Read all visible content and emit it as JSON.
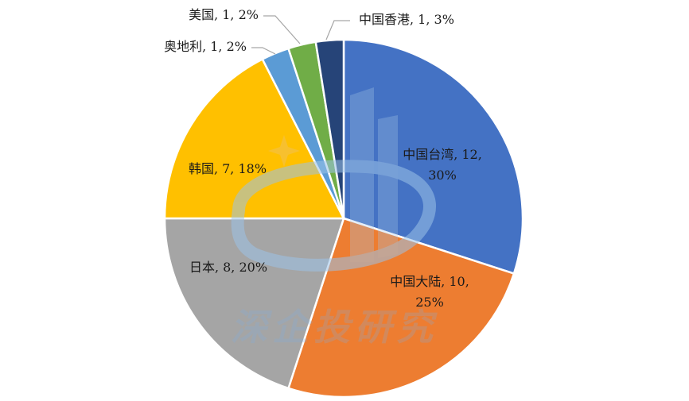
{
  "chart_data": {
    "type": "pie",
    "title": "",
    "start_angle_deg": 0,
    "direction": "clockwise",
    "slices": [
      {
        "label": "中国台湾",
        "value": 12,
        "percent": "30%",
        "color": "#4472c4",
        "label_lines": [
          "中国台湾, 12,",
          "30%"
        ],
        "label_pos": "inside"
      },
      {
        "label": "中国大陆",
        "value": 10,
        "percent": "25%",
        "color": "#ed7d31",
        "label_lines": [
          "中国大陆, 10,",
          "25%"
        ],
        "label_pos": "inside"
      },
      {
        "label": "日本",
        "value": 8,
        "percent": "20%",
        "color": "#a5a5a5",
        "label_lines": [
          "日本, 8, 20%"
        ],
        "label_pos": "inside"
      },
      {
        "label": "韩国",
        "value": 7,
        "percent": "18%",
        "color": "#ffc000",
        "label_lines": [
          "韩国, 7, 18%"
        ],
        "label_pos": "inside"
      },
      {
        "label": "奥地利",
        "value": 1,
        "percent": "2%",
        "color": "#5b9bd5",
        "label_lines": [
          "奥地利, 1, 2%"
        ],
        "label_pos": "outside"
      },
      {
        "label": "美国",
        "value": 1,
        "percent": "2%",
        "color": "#70ad47",
        "label_lines": [
          "美国, 1, 2%"
        ],
        "label_pos": "outside"
      },
      {
        "label": "中国香港",
        "value": 1,
        "percent": "3%",
        "color": "#264478",
        "label_lines": [
          "中国香港, 1, 3%"
        ],
        "label_pos": "outside"
      }
    ],
    "legend": "none"
  },
  "watermark": {
    "text": "深企投研究",
    "color": "#7fb0e0"
  }
}
